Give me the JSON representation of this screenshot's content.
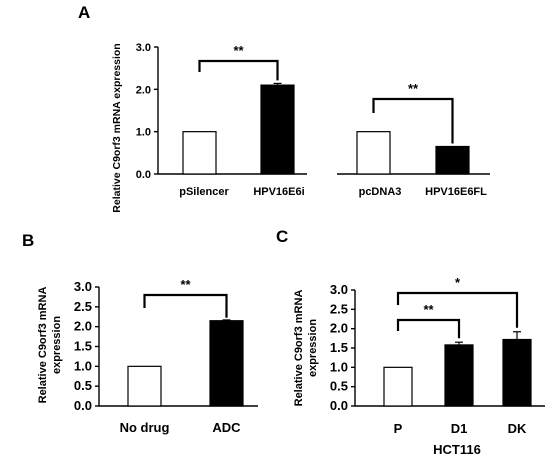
{
  "colors": {
    "axis": "#000000",
    "bar_fill_dark": "#000000",
    "bar_fill_light": "#ffffff",
    "bar_stroke": "#000000"
  },
  "chart_data": [
    {
      "type": "bar",
      "panel_label": "A",
      "ylabel": "Relative C9orf3 mRNA expression",
      "xlabel": "",
      "ylim": [
        0,
        3.0
      ],
      "yticks": [
        "0.0",
        "1.0",
        "2.0",
        "3.0"
      ],
      "groups": [
        {
          "categories": [
            "pSilencer",
            "HPV16E6i"
          ],
          "values": [
            1.0,
            2.1
          ],
          "errors": [
            0,
            0.04
          ],
          "fills": [
            "white",
            "black"
          ],
          "significance": "**"
        },
        {
          "categories": [
            "pcDNA3",
            "HPV16E6FL"
          ],
          "values": [
            1.0,
            0.65
          ],
          "errors": [
            0,
            0
          ],
          "fills": [
            "white",
            "black"
          ],
          "significance": "**"
        }
      ]
    },
    {
      "type": "bar",
      "panel_label": "B",
      "ylabel_lines": [
        "Relative C9orf3 mRNA",
        "expression"
      ],
      "xlabel": "",
      "ylim": [
        0,
        3.0
      ],
      "yticks": [
        "0.0",
        "0.5",
        "1.0",
        "1.5",
        "2.0",
        "2.5",
        "3.0"
      ],
      "categories": [
        "No drug",
        "ADC"
      ],
      "values": [
        1.0,
        2.15
      ],
      "errors": [
        0,
        0.02
      ],
      "fills": [
        "white",
        "black"
      ],
      "significance": [
        {
          "from": 0,
          "to": 1,
          "label": "**"
        }
      ]
    },
    {
      "type": "bar",
      "panel_label": "C",
      "ylabel_lines": [
        "Relative C9orf3 mRNA",
        "expression"
      ],
      "xlabel": "HCT116",
      "ylim": [
        0,
        3.0
      ],
      "yticks": [
        "0.0",
        "0.5",
        "1.0",
        "1.5",
        "2.0",
        "2.5",
        "3.0"
      ],
      "categories": [
        "P",
        "D1",
        "DK"
      ],
      "values": [
        1.0,
        1.58,
        1.72
      ],
      "errors": [
        0,
        0.07,
        0.2
      ],
      "fills": [
        "white",
        "black",
        "black"
      ],
      "significance": [
        {
          "from": 0,
          "to": 1,
          "label": "**"
        },
        {
          "from": 0,
          "to": 2,
          "label": "*"
        }
      ]
    }
  ]
}
